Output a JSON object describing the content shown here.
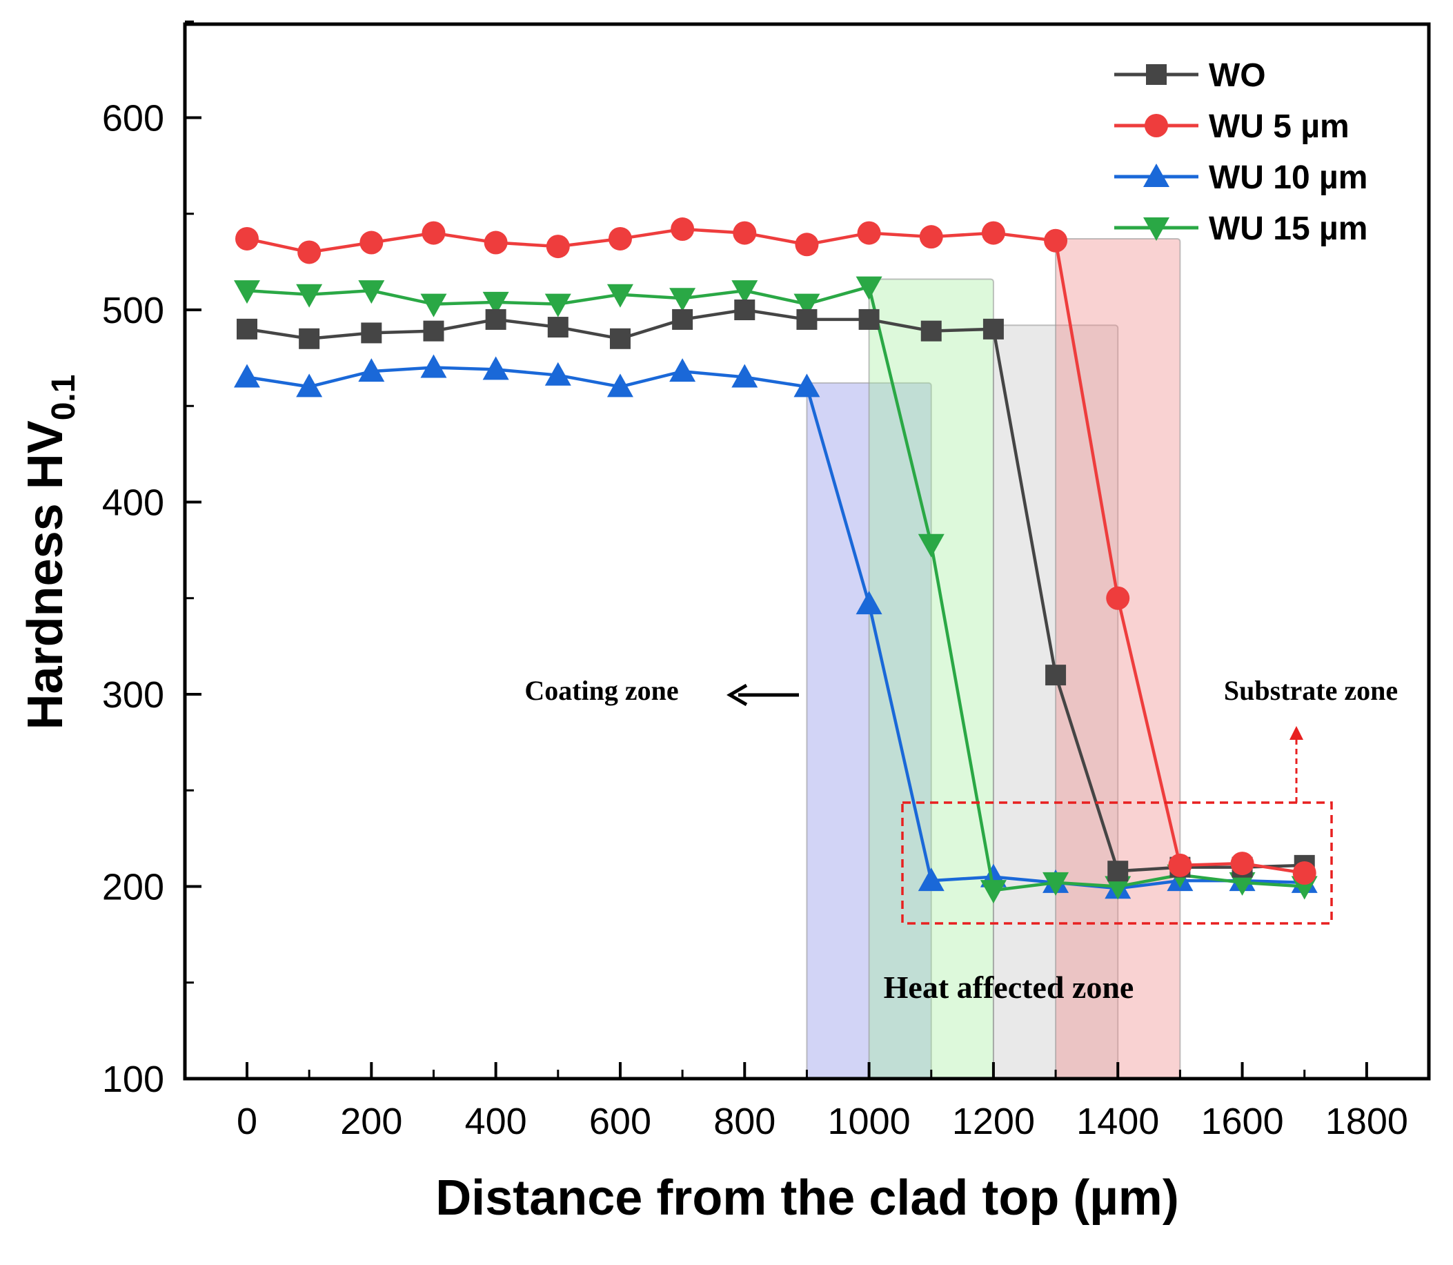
{
  "chart_data": {
    "type": "line",
    "title": "",
    "xlabel": "Distance from the clad top (µm)",
    "ylabel_main": "Hardness HV",
    "ylabel_sub": "0.1",
    "xlim": [
      -100,
      1900
    ],
    "ylim": [
      100,
      650
    ],
    "x_ticks": [
      0,
      200,
      400,
      600,
      800,
      1000,
      1200,
      1400,
      1600,
      1800
    ],
    "y_ticks": [
      100,
      200,
      300,
      400,
      500,
      600
    ],
    "grid": false,
    "legend_position": "top-right",
    "x": [
      0,
      100,
      200,
      300,
      400,
      500,
      600,
      700,
      800,
      900,
      1000,
      1100,
      1200,
      1300,
      1400,
      1500,
      1600,
      1700
    ],
    "series": [
      {
        "name": "WO",
        "color": "#454545",
        "marker": "square",
        "values": [
          490,
          485,
          488,
          489,
          495,
          491,
          485,
          495,
          500,
          495,
          495,
          489,
          490,
          310,
          208,
          210,
          210,
          211
        ]
      },
      {
        "name": "WU 5 µm",
        "color": "#ee3d3d",
        "marker": "circle",
        "values": [
          537,
          530,
          535,
          540,
          535,
          533,
          537,
          542,
          540,
          534,
          540,
          538,
          540,
          536,
          350,
          211,
          212,
          207
        ]
      },
      {
        "name": "WU 10 µm",
        "color": "#1a68d8",
        "marker": "triangle-up",
        "values": [
          465,
          460,
          468,
          470,
          469,
          466,
          460,
          468,
          465,
          460,
          347,
          203,
          205,
          202,
          199,
          203,
          203,
          202
        ]
      },
      {
        "name": "WU 15 µm",
        "color": "#2aa845",
        "marker": "triangle-down",
        "values": [
          510,
          508,
          510,
          503,
          504,
          503,
          508,
          506,
          510,
          503,
          512,
          378,
          198,
          202,
          200,
          206,
          202,
          200
        ]
      }
    ],
    "zones": [
      {
        "series": "WU 10 µm",
        "x_from": 900,
        "x_to": 1100,
        "y_top": 462,
        "color": "#8a8ee8"
      },
      {
        "series": "WU 15 µm",
        "x_from": 1000,
        "x_to": 1200,
        "y_top": 516,
        "color": "#a6f0a0"
      },
      {
        "series": "WO",
        "x_from": 1200,
        "x_to": 1400,
        "y_top": 492,
        "color": "#c4c4c4"
      },
      {
        "series": "WU 5 µm",
        "x_from": 1300,
        "x_to": 1500,
        "y_top": 537,
        "color": "#f08a8a"
      }
    ],
    "annotations": {
      "coating_zone": "Coating zone",
      "substrate_zone": "Substrate zone",
      "heat_affected_zone": "Heat affected zone"
    }
  }
}
